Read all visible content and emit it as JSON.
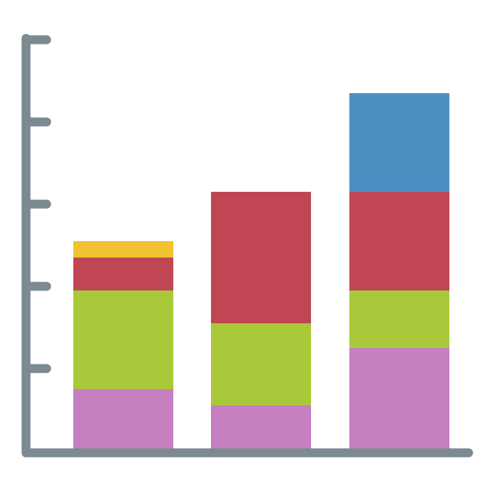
{
  "chart_data": {
    "type": "bar",
    "stacked": true,
    "categories": [
      "",
      "",
      ""
    ],
    "ylim": [
      0,
      5
    ],
    "y_ticks": [
      0,
      1,
      2,
      3,
      4,
      5
    ],
    "grid": false,
    "tick_labels_shown": false,
    "axis_color": "#7c8a91",
    "series": [
      {
        "color": "#c67fc0",
        "values": [
          0.75,
          0.55,
          1.25
        ]
      },
      {
        "color": "#a9c93b",
        "values": [
          1.2,
          1.0,
          0.7
        ]
      },
      {
        "color": "#c04654",
        "values": [
          0.4,
          1.6,
          1.2
        ]
      },
      {
        "color": "#f1c232",
        "values": [
          0.2,
          0,
          0
        ]
      },
      {
        "color": "#4b8fc3",
        "values": [
          0,
          0,
          1.2
        ]
      }
    ]
  }
}
